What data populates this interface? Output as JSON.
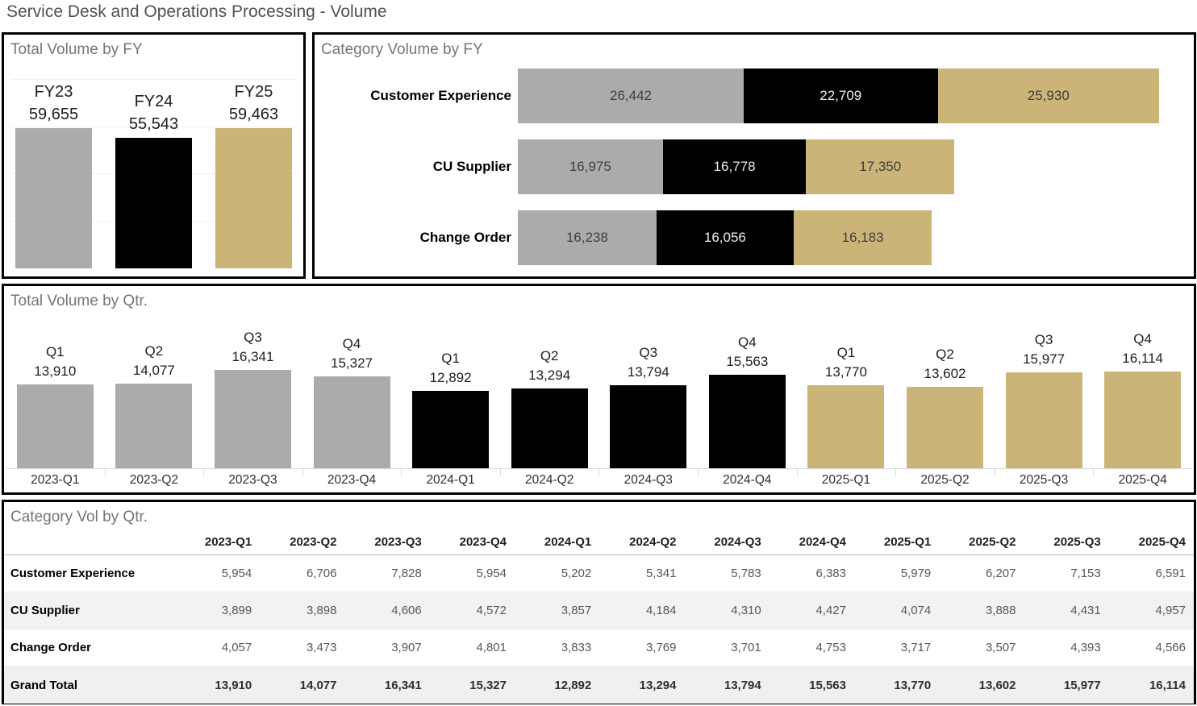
{
  "page_title": "Service Desk and Operations Processing - Volume",
  "colors": {
    "gray": "#ababab",
    "black": "#000000",
    "gold": "#cbb477"
  },
  "panels": {
    "fy": {
      "title": "Total Volume by FY"
    },
    "category_fy": {
      "title": "Category Volume by FY"
    },
    "qtr": {
      "title": "Total Volume by Qtr."
    },
    "category_qtr": {
      "title": "Category Vol by Qtr."
    }
  },
  "chart_data": [
    {
      "id": "total_volume_by_fy",
      "type": "bar",
      "title": "Total Volume by FY",
      "categories": [
        "FY23",
        "FY24",
        "FY25"
      ],
      "values": [
        59655,
        55543,
        59463
      ],
      "bar_colors": [
        "gray",
        "black",
        "gold"
      ],
      "ylim": [
        0,
        80000
      ],
      "grid": true,
      "data_labels": true
    },
    {
      "id": "category_volume_by_fy",
      "type": "bar",
      "subtype": "horizontal-stacked",
      "title": "Category Volume by FY",
      "categories": [
        "Customer Experience",
        "CU Supplier",
        "Change Order"
      ],
      "series": [
        {
          "name": "FY23",
          "color": "gray",
          "values": [
            26442,
            16975,
            16238
          ]
        },
        {
          "name": "FY24",
          "color": "black",
          "values": [
            22709,
            16778,
            16056
          ]
        },
        {
          "name": "FY25",
          "color": "gold",
          "values": [
            25930,
            17350,
            16183
          ]
        }
      ],
      "data_labels": true
    },
    {
      "id": "total_volume_by_qtr",
      "type": "bar",
      "title": "Total Volume by Qtr.",
      "x": [
        "2023-Q1",
        "2023-Q2",
        "2023-Q3",
        "2023-Q4",
        "2024-Q1",
        "2024-Q2",
        "2024-Q3",
        "2024-Q4",
        "2025-Q1",
        "2025-Q2",
        "2025-Q3",
        "2025-Q4"
      ],
      "quarter_labels": [
        "Q1",
        "Q2",
        "Q3",
        "Q4",
        "Q1",
        "Q2",
        "Q3",
        "Q4",
        "Q1",
        "Q2",
        "Q3",
        "Q4"
      ],
      "values": [
        13910,
        14077,
        16341,
        15327,
        12892,
        13294,
        13794,
        15563,
        13770,
        13602,
        15977,
        16114
      ],
      "bar_colors": [
        "gray",
        "gray",
        "gray",
        "gray",
        "black",
        "black",
        "black",
        "black",
        "gold",
        "gold",
        "gold",
        "gold"
      ],
      "ylim": [
        0,
        16500
      ],
      "data_labels": true
    },
    {
      "id": "category_vol_by_qtr",
      "type": "table",
      "title": "Category Vol by Qtr.",
      "columns": [
        "2023-Q1",
        "2023-Q2",
        "2023-Q3",
        "2023-Q4",
        "2024-Q1",
        "2024-Q2",
        "2024-Q3",
        "2024-Q4",
        "2025-Q1",
        "2025-Q2",
        "2025-Q3",
        "2025-Q4"
      ],
      "rows": [
        {
          "label": "Customer Experience",
          "values": [
            5954,
            6706,
            7828,
            5954,
            5202,
            5341,
            5783,
            6383,
            5979,
            6207,
            7153,
            6591
          ]
        },
        {
          "label": "CU Supplier",
          "values": [
            3899,
            3898,
            4606,
            4572,
            3857,
            4184,
            4310,
            4427,
            4074,
            3888,
            4431,
            4957
          ]
        },
        {
          "label": "Change Order",
          "values": [
            4057,
            3473,
            3907,
            4801,
            3833,
            3769,
            3701,
            4753,
            3717,
            3507,
            4393,
            4566
          ]
        },
        {
          "label": "Grand Total",
          "values": [
            13910,
            14077,
            16341,
            15327,
            12892,
            13294,
            13794,
            15563,
            13770,
            13602,
            15977,
            16114
          ],
          "is_total": true
        }
      ]
    }
  ]
}
